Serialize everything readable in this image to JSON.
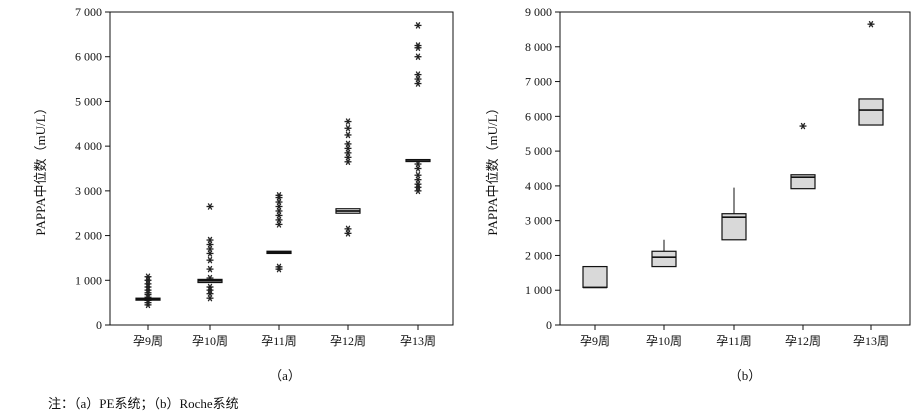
{
  "chart_data": [
    {
      "type": "scatter",
      "caption": "（a）",
      "ylabel": "PAPPA中位数（mU/L）",
      "ylim": [
        0,
        7000
      ],
      "yticks": [
        0,
        1000,
        2000,
        3000,
        4000,
        5000,
        6000,
        7000
      ],
      "ytick_labels": [
        "0",
        "1 000",
        "2 000",
        "3 000",
        "4 000",
        "5 000",
        "6 000",
        "7 000"
      ],
      "categories": [
        "孕9周",
        "孕10周",
        "孕11周",
        "孕12周",
        "孕13周"
      ],
      "boxes": [
        {
          "q1": 560,
          "q3": 600
        },
        {
          "q1": 950,
          "q3": 1020
        },
        {
          "q1": 1600,
          "q3": 1650
        },
        {
          "q1": 2500,
          "q3": 2600
        },
        {
          "q1": 3680,
          "q3": 3700
        }
      ],
      "medians": [
        580,
        990,
        1630,
        2550,
        3690
      ],
      "points": [
        [
          450,
          500,
          550,
          620,
          680,
          720,
          780,
          850,
          920,
          1000,
          1080
        ],
        [
          600,
          700,
          780,
          850,
          1050,
          1250,
          1450,
          1600,
          1700,
          1800,
          1900,
          2650
        ],
        [
          1250,
          1300,
          2250,
          2350,
          2450,
          2550,
          2650,
          2750,
          2850,
          2900
        ],
        [
          2050,
          2150,
          3650,
          3750,
          3850,
          3950,
          4050,
          4250,
          4400,
          4550
        ],
        [
          3000,
          3080,
          3150,
          3250,
          3350,
          3500,
          3600,
          5400,
          5500,
          5600,
          6000,
          6200,
          6250,
          6700
        ]
      ]
    },
    {
      "type": "box",
      "caption": "（b）",
      "ylabel": "PAPPA中位数（mU/L）",
      "ylim": [
        0,
        9000
      ],
      "yticks": [
        0,
        1000,
        2000,
        3000,
        4000,
        5000,
        6000,
        7000,
        8000,
        9000
      ],
      "ytick_labels": [
        "0",
        "1 000",
        "2 000",
        "3 000",
        "4 000",
        "5 000",
        "6 000",
        "7 000",
        "8 000",
        "9 000"
      ],
      "categories": [
        "孕9周",
        "孕10周",
        "孕11周",
        "孕12周",
        "孕13周"
      ],
      "boxes": [
        {
          "q1": 1080,
          "q3": 1680,
          "median": 1080,
          "whisker_high": null
        },
        {
          "q1": 1680,
          "q3": 2120,
          "median": 1950,
          "whisker_high": 2450
        },
        {
          "q1": 2450,
          "q3": 3200,
          "median": 3100,
          "whisker_high": 3950
        },
        {
          "q1": 3920,
          "q3": 4320,
          "median": 4250,
          "whisker_high": null
        },
        {
          "q1": 5750,
          "q3": 6500,
          "median": 6180,
          "whisker_high": null
        }
      ],
      "outliers": [
        [],
        [],
        [],
        [
          5720
        ],
        [
          8650
        ]
      ],
      "box_fill": "#d9d9d9"
    }
  ],
  "note": "注：（a）PE系统；（b）Roche系统"
}
